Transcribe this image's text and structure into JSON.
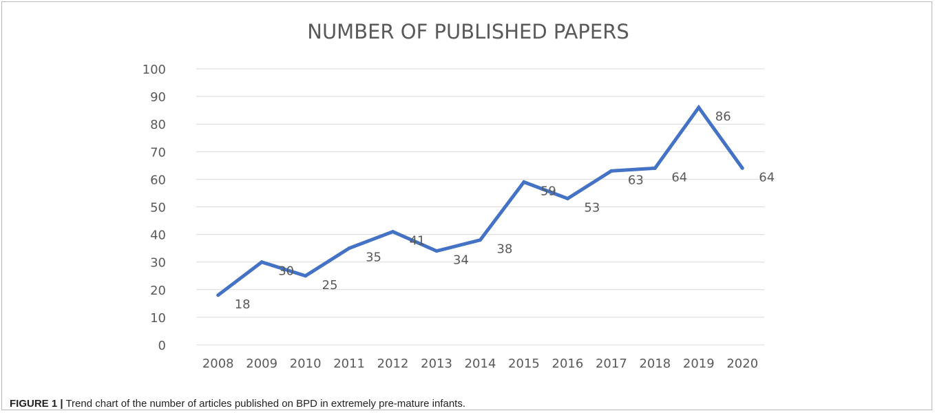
{
  "caption": {
    "label": "FIGURE 1 |",
    "text": "Trend chart of the number of articles published on BPD in extremely pre-mature infants."
  },
  "chart_data": {
    "type": "line",
    "title": "NUMBER OF PUBLISHED PAPERS",
    "xlabel": "",
    "ylabel": "",
    "categories": [
      "2008",
      "2009",
      "2010",
      "2011",
      "2012",
      "2013",
      "2014",
      "2015",
      "2016",
      "2017",
      "2018",
      "2019",
      "2020"
    ],
    "series": [
      {
        "values": [
          18,
          30,
          25,
          35,
          41,
          34,
          38,
          59,
          53,
          63,
          64,
          86,
          64
        ]
      }
    ],
    "ylim": [
      0,
      100
    ],
    "yticks": [
      0,
      10,
      20,
      30,
      40,
      50,
      60,
      70,
      80,
      90,
      100
    ],
    "grid": true,
    "legend": "none",
    "data_labels": true,
    "colors": {
      "series": "#4472c4",
      "grid": "#d9d9d9",
      "text": "#595959"
    }
  }
}
